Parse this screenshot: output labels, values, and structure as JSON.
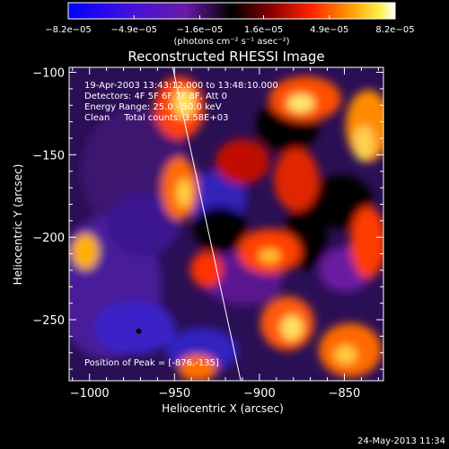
{
  "chart_data": {
    "type": "heatmap",
    "title": "Reconstructed RHESSI Image",
    "xlabel": "Heliocentric X (arcsec)",
    "ylabel": "Heliocentric Y (arcsec)",
    "xlim": [
      -1012,
      -827
    ],
    "ylim": [
      -287,
      -97
    ],
    "x_ticks": [
      {
        "value": -1000,
        "label": "−1000"
      },
      {
        "value": -950,
        "label": "−950"
      },
      {
        "value": -900,
        "label": "−900"
      },
      {
        "value": -850,
        "label": "−850"
      }
    ],
    "y_ticks": [
      {
        "value": -100,
        "label": "−100"
      },
      {
        "value": -150,
        "label": "−150"
      },
      {
        "value": -200,
        "label": "−200"
      },
      {
        "value": -250,
        "label": "−250"
      }
    ],
    "colorbar": {
      "min": -8.2e-05,
      "max": 8.2e-05,
      "ticks": [
        {
          "value": -8.2e-05,
          "label": "−8.2e−05"
        },
        {
          "value": -4.9e-05,
          "label": "−4.9e−05"
        },
        {
          "value": -1.6e-05,
          "label": "−1.6e−05"
        },
        {
          "value": 1.6e-05,
          "label": "1.6e−05"
        },
        {
          "value": 4.9e-05,
          "label": "4.9e−05"
        },
        {
          "value": 8.2e-05,
          "label": "8.2e−05"
        }
      ],
      "unit_label": "(photons cm⁻² s⁻¹ asec⁻²)"
    },
    "annotations": [
      "19-Apr-2003 13:43:12.000 to 13:48:10.000",
      "Detectors: 4F 5F 6F 7F 8F, Att 0",
      "Energy Range: 25.0 - 50.0 keV",
      "Clean     Total counts: 3.58E+03"
    ],
    "peak_label": "Position of Peak = [-876,-135]",
    "peak_position": [
      -876,
      -135
    ],
    "limb_line": [
      [
        -951,
        -97
      ],
      [
        -911,
        -287
      ]
    ],
    "marker": [
      -971,
      -257
    ],
    "timestamp": "24-May-2013 11:34",
    "grid": false
  }
}
